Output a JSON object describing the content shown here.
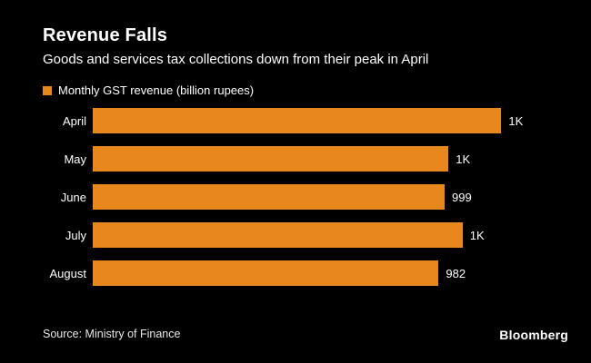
{
  "chart_data": {
    "type": "bar",
    "orientation": "horizontal",
    "title": "Revenue Falls",
    "subtitle": "Goods and services tax collections down from their peak in April",
    "legend": {
      "label": "Monthly GST revenue (billion rupees)",
      "color": "#E8871E"
    },
    "legend_position": "top-left",
    "categories": [
      "April",
      "May",
      "June",
      "July",
      "August"
    ],
    "values": [
      1160,
      1010,
      999,
      1050,
      982
    ],
    "value_labels": [
      "1K",
      "1K",
      "999",
      "1K",
      "982"
    ],
    "xmax": 1350,
    "bar_color": "#E8871E",
    "grid": false,
    "axes_visible": false
  },
  "footer": {
    "source": "Source: Ministry of Finance",
    "brand": "Bloomberg"
  },
  "colors": {
    "background": "#000000",
    "text": "#FFFFFF",
    "accent": "#E8871E"
  }
}
